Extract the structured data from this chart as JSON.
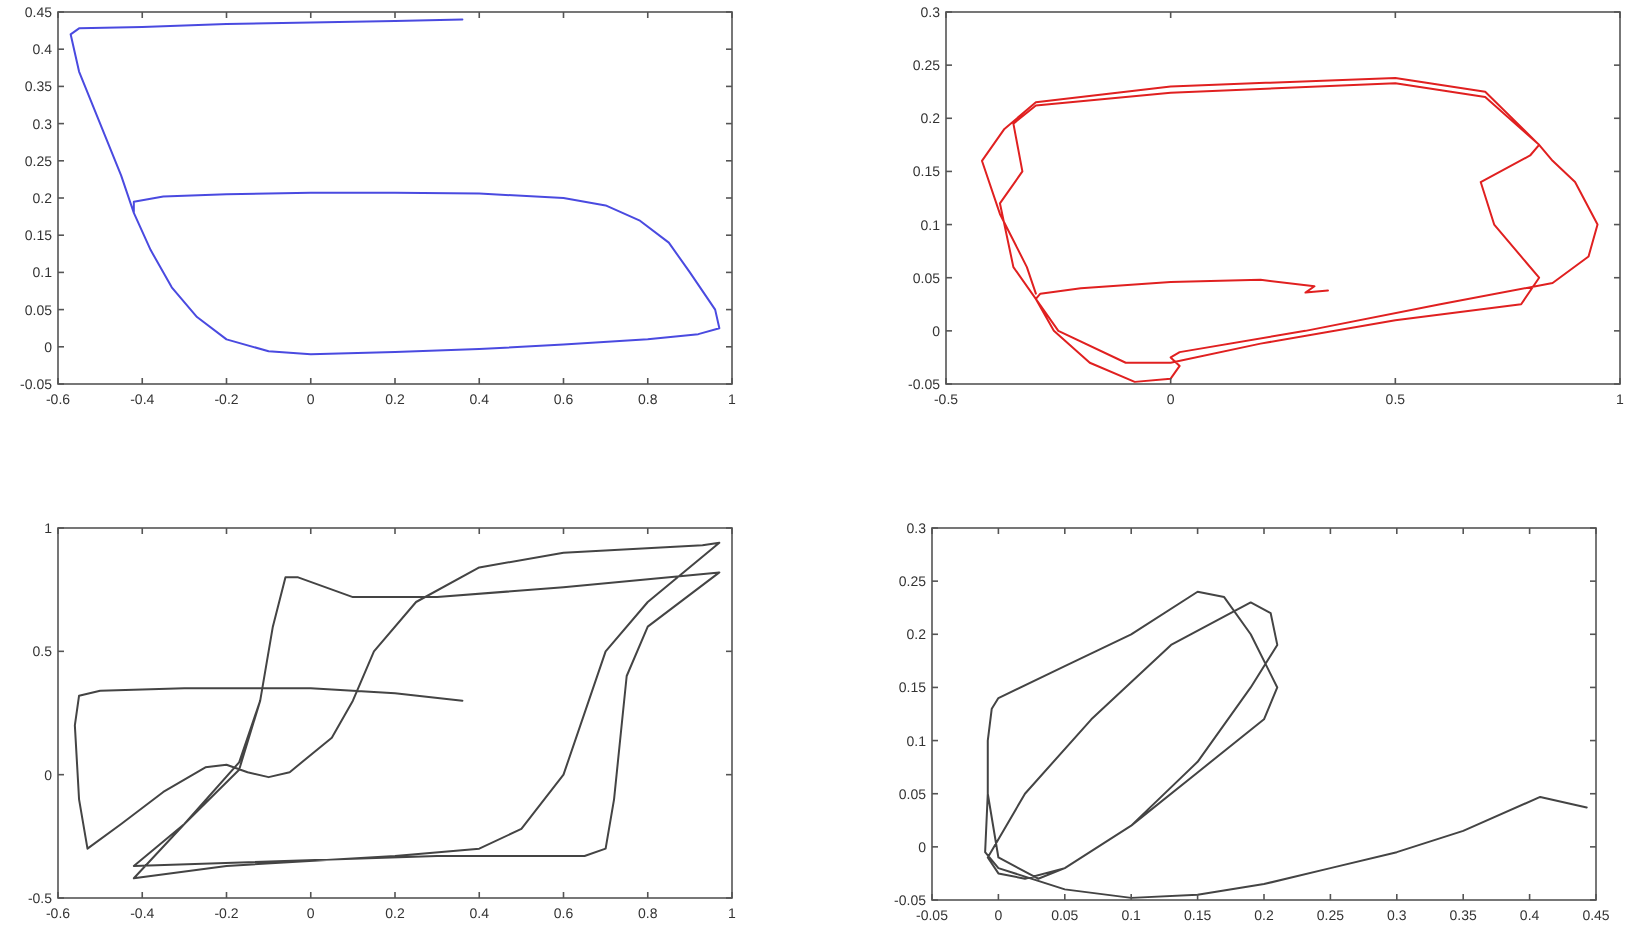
{
  "chart_data": [
    {
      "type": "line",
      "xlim": [
        -0.6,
        1
      ],
      "ylim": [
        -0.05,
        0.45
      ],
      "xticks": [
        -0.6,
        -0.4,
        -0.2,
        0,
        0.2,
        0.4,
        0.6,
        0.8,
        1
      ],
      "yticks": [
        -0.05,
        0,
        0.05,
        0.1,
        0.15,
        0.2,
        0.25,
        0.3,
        0.35,
        0.4,
        0.45
      ],
      "series": [
        {
          "color": "#4a4ae0",
          "x": [
            0.36,
            0.2,
            0,
            -0.2,
            -0.4,
            -0.55,
            -0.57,
            -0.55,
            -0.5,
            -0.45,
            -0.42,
            -0.38,
            -0.33,
            -0.27,
            -0.2,
            -0.1,
            0,
            0.2,
            0.4,
            0.6,
            0.8,
            0.92,
            0.97,
            0.96,
            0.9,
            0.85,
            0.78,
            0.7,
            0.6,
            0.4,
            0.2,
            0,
            -0.2,
            -0.35,
            -0.42,
            -0.42,
            -0.38,
            -0.33,
            -0.27,
            -0.2,
            -0.1,
            0,
            0.2,
            0.4,
            0.6,
            0.8,
            0.92,
            0.97
          ],
          "values": [
            0.44,
            0.438,
            0.436,
            0.434,
            0.43,
            0.428,
            0.42,
            0.37,
            0.3,
            0.23,
            0.18,
            0.13,
            0.08,
            0.04,
            0.01,
            -0.006,
            -0.01,
            -0.007,
            -0.003,
            0.003,
            0.01,
            0.017,
            0.025,
            0.05,
            0.1,
            0.14,
            0.17,
            0.19,
            0.2,
            0.206,
            0.207,
            0.207,
            0.205,
            0.202,
            0.195,
            0.18,
            0.13,
            0.08,
            0.04,
            0.01,
            -0.006,
            -0.01,
            -0.007,
            -0.003,
            0.003,
            0.01,
            0.017,
            0.025
          ]
        }
      ]
    },
    {
      "type": "line",
      "xlim": [
        -0.5,
        1
      ],
      "ylim": [
        -0.05,
        0.3
      ],
      "xticks": [
        -0.5,
        0,
        0.5,
        1
      ],
      "yticks": [
        -0.05,
        0,
        0.05,
        0.1,
        0.15,
        0.2,
        0.25,
        0.3
      ],
      "series": [
        {
          "color": "#e02020",
          "x": [
            0.35,
            0.3,
            0.32,
            0.2,
            0,
            -0.2,
            -0.29,
            -0.3,
            -0.26,
            -0.18,
            -0.08,
            0,
            0.02,
            0,
            0.02,
            0.3,
            0.6,
            0.85,
            0.93,
            0.95,
            0.9,
            0.85,
            0.82,
            0.7,
            0.5,
            0,
            -0.3,
            -0.35,
            -0.33,
            -0.38,
            -0.35,
            -0.25,
            -0.1,
            0,
            0.2,
            0.5,
            0.78,
            0.82,
            0.72,
            0.69,
            0.8,
            0.82,
            0.7,
            0.5,
            0,
            -0.3,
            -0.37,
            -0.42,
            -0.38,
            -0.32,
            -0.3
          ],
          "values": [
            0.038,
            0.036,
            0.042,
            0.048,
            0.046,
            0.04,
            0.035,
            0.03,
            0,
            -0.03,
            -0.048,
            -0.045,
            -0.033,
            -0.025,
            -0.02,
            0,
            0.025,
            0.045,
            0.07,
            0.1,
            0.14,
            0.16,
            0.175,
            0.22,
            0.233,
            0.224,
            0.212,
            0.195,
            0.15,
            0.12,
            0.06,
            0,
            -0.03,
            -0.03,
            -0.012,
            0.01,
            0.025,
            0.05,
            0.1,
            0.14,
            0.165,
            0.175,
            0.225,
            0.238,
            0.23,
            0.215,
            0.19,
            0.16,
            0.11,
            0.06,
            0.035
          ]
        }
      ]
    },
    {
      "type": "line",
      "xlim": [
        -0.6,
        1
      ],
      "ylim": [
        -0.5,
        1
      ],
      "xticks": [
        -0.6,
        -0.4,
        -0.2,
        0,
        0.2,
        0.4,
        0.6,
        0.8,
        1
      ],
      "yticks": [
        -0.5,
        0,
        0.5,
        1
      ],
      "series": [
        {
          "color": "#444444",
          "x": [
            0.36,
            0.2,
            0,
            -0.3,
            -0.5,
            -0.55,
            -0.56,
            -0.55,
            -0.53,
            -0.45,
            -0.35,
            -0.25,
            -0.2,
            -0.15,
            -0.1,
            -0.05,
            0.05,
            0.1,
            0.15,
            0.25,
            0.4,
            0.6,
            0.93,
            0.97,
            0.8,
            0.7,
            0.6,
            0.5,
            0.4,
            0.2,
            -0.2,
            -0.42,
            -0.3,
            -0.17,
            -0.12,
            -0.09,
            -0.06,
            -0.03,
            0.1,
            0.3,
            0.6,
            0.97,
            0.8,
            0.75,
            0.72,
            0.7,
            0.65,
            0.3,
            -0.42,
            -0.3,
            -0.17,
            -0.12,
            -0.09,
            -0.06
          ],
          "values": [
            0.3,
            0.33,
            0.35,
            0.35,
            0.34,
            0.32,
            0.2,
            -0.1,
            -0.3,
            -0.2,
            -0.07,
            0.03,
            0.04,
            0.01,
            -0.01,
            0.01,
            0.15,
            0.3,
            0.5,
            0.7,
            0.84,
            0.9,
            0.93,
            0.94,
            0.7,
            0.5,
            0,
            -0.22,
            -0.3,
            -0.33,
            -0.37,
            -0.42,
            -0.2,
            0.05,
            0.3,
            0.6,
            0.8,
            0.8,
            0.72,
            0.72,
            0.76,
            0.82,
            0.6,
            0.4,
            -0.1,
            -0.3,
            -0.33,
            -0.33,
            -0.37,
            -0.2,
            0.02,
            0.3,
            0.6,
            0.8
          ]
        }
      ]
    },
    {
      "type": "line",
      "xlim": [
        -0.05,
        0.45
      ],
      "ylim": [
        -0.05,
        0.3
      ],
      "xticks": [
        -0.05,
        0,
        0.05,
        0.1,
        0.15,
        0.2,
        0.25,
        0.3,
        0.35,
        0.4,
        0.45
      ],
      "yticks": [
        -0.05,
        0,
        0.05,
        0.1,
        0.15,
        0.2,
        0.25,
        0.3
      ],
      "series": [
        {
          "color": "#444444",
          "x": [
            0.443,
            0.408,
            0.35,
            0.3,
            0.25,
            0.2,
            0.15,
            0.1,
            0.05,
            0,
            -0.01,
            -0.008,
            -0.008,
            -0.005,
            0,
            0.05,
            0.1,
            0.15,
            0.17,
            0.19,
            0.21,
            0.2,
            0.15,
            0.1,
            0.05,
            0.02,
            0,
            -0.008,
            0.02,
            0.07,
            0.13,
            0.19,
            0.205,
            0.21,
            0.19,
            0.15,
            0.1,
            0.05,
            0.03,
            0,
            -0.008,
            -0.008,
            -0.005,
            0,
            0.05,
            0.1,
            0.15,
            0.17,
            0.19,
            0.21,
            0.2,
            0.15,
            0.1,
            0.05,
            0.02
          ],
          "values": [
            0.037,
            0.047,
            0.015,
            -0.005,
            -0.02,
            -0.035,
            -0.045,
            -0.048,
            -0.04,
            -0.02,
            -0.005,
            0.05,
            0.1,
            0.13,
            0.14,
            0.17,
            0.2,
            0.24,
            0.235,
            0.2,
            0.15,
            0.12,
            0.07,
            0.02,
            -0.02,
            -0.03,
            -0.025,
            -0.01,
            0.05,
            0.12,
            0.19,
            0.23,
            0.22,
            0.19,
            0.15,
            0.08,
            0.02,
            -0.02,
            -0.03,
            -0.01,
            0.05,
            0.1,
            0.13,
            0.14,
            0.17,
            0.2,
            0.24,
            0.235,
            0.2,
            0.15,
            0.12,
            0.07,
            0.02,
            -0.02,
            -0.03
          ]
        }
      ]
    }
  ]
}
